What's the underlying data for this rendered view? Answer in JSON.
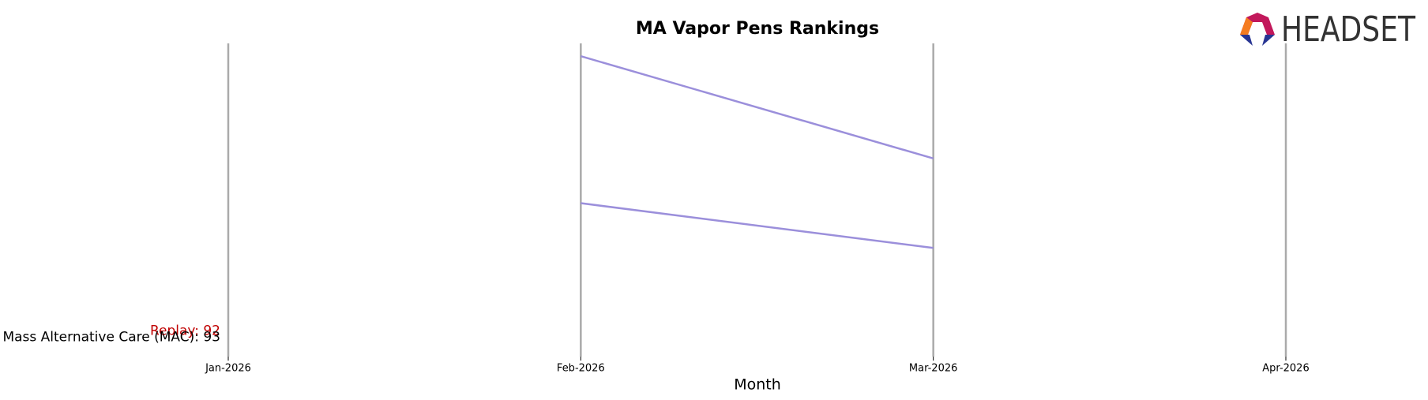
{
  "chart_data": {
    "type": "bump",
    "title": "MA Vapor Pens Rankings",
    "x_label": "Month",
    "logo_text": "HEADSET",
    "categories": [
      "Jan-2026",
      "Feb-2026",
      "Mar-2026",
      "Apr-2026"
    ],
    "ylim": [
      47,
      96
    ],
    "y_inverted": true,
    "series": [
      {
        "name": "Replay",
        "label": "Replay: 92",
        "rank": 92,
        "label_color": "#c00000",
        "color": "#9b8fdb",
        "values": [
          null,
          49,
          65,
          null
        ]
      },
      {
        "name": "Mass Alternative Care (MAC)",
        "label": "Mass Alternative Care (MAC): 93",
        "rank": 93,
        "label_color": "#000000",
        "color": "#9b8fdb",
        "values": [
          null,
          72,
          79,
          null
        ]
      }
    ]
  }
}
